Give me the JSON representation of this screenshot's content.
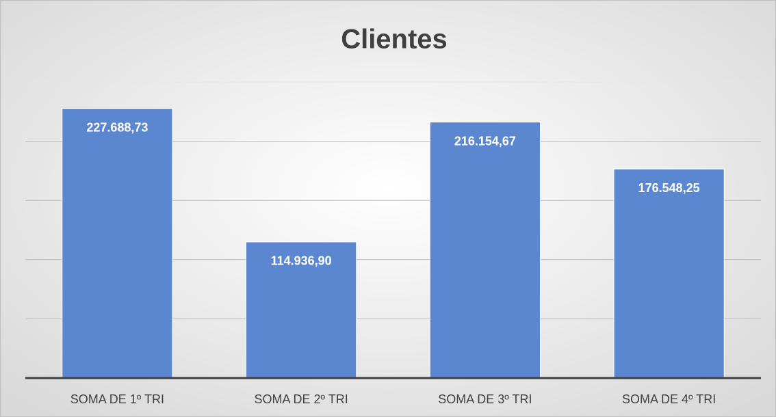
{
  "chart_data": {
    "type": "bar",
    "title": "Clientes",
    "categories": [
      "SOMA DE 1º TRI",
      "SOMA DE 2º TRI",
      "SOMA DE 3º TRI",
      "SOMA DE 4º TRI"
    ],
    "values": [
      227688.73,
      114936.9,
      216154.67,
      176548.25
    ],
    "value_labels": [
      "227.688,73",
      "114.936,90",
      "216.154,67",
      "176.548,25"
    ],
    "color": "#5b87d0",
    "ylim": [
      0,
      250000
    ],
    "yticks": [
      0,
      50000,
      100000,
      150000,
      200000,
      250000
    ],
    "grid": true
  }
}
